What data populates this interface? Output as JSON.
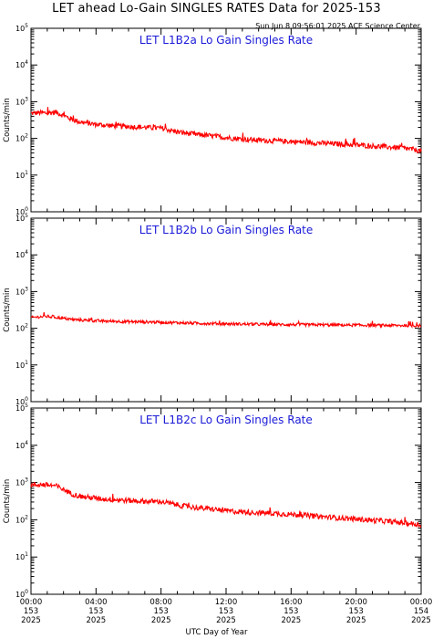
{
  "page": {
    "title": "LET ahead Lo-Gain SINGLES RATES Data for 2025-153",
    "timestamp": "Sun Jun  8 09:56:01 2025 ACE Science Center",
    "xlabel": "UTC Day of Year"
  },
  "colors": {
    "series": "#ff0000",
    "panel_title": "#1a1ad8",
    "axes": "#000000"
  },
  "chart_data": [
    {
      "type": "line",
      "title": "LET L1B2a Lo Gain Singles Rate",
      "ylabel": "Counts/min",
      "yscale": "log",
      "ylim": [
        1,
        100000
      ],
      "xlim": [
        0,
        24
      ],
      "x_tick_labels": [
        [
          "00:00",
          "153",
          "2025"
        ],
        [
          "04:00",
          "153",
          "2025"
        ],
        [
          "08:00",
          "153",
          "2025"
        ],
        [
          "12:00",
          "153",
          "2025"
        ],
        [
          "16:00",
          "153",
          "2025"
        ],
        [
          "20:00",
          "153",
          "2025"
        ],
        [
          "00:00",
          "154",
          "2025"
        ]
      ],
      "series": [
        {
          "x": [
            0,
            0.5,
            1,
            1.5,
            2,
            2.5,
            3,
            3.5,
            4,
            4.5,
            5,
            5.5,
            6,
            6.5,
            7,
            7.5,
            8,
            8.5,
            9,
            9.5,
            10,
            10.5,
            11,
            11.5,
            12,
            12.5,
            13,
            13.5,
            14,
            14.5,
            15,
            15.5,
            16,
            16.5,
            17,
            17.5,
            18,
            18.5,
            19,
            19.5,
            20,
            20.5,
            21,
            21.5,
            22,
            22.5,
            23,
            23.5,
            24
          ],
          "values": [
            480,
            500,
            490,
            520,
            420,
            330,
            280,
            260,
            240,
            230,
            220,
            215,
            210,
            205,
            200,
            195,
            190,
            170,
            150,
            140,
            130,
            125,
            118,
            112,
            105,
            100,
            96,
            92,
            90,
            88,
            86,
            84,
            82,
            80,
            78,
            76,
            74,
            72,
            70,
            68,
            66,
            64,
            62,
            60,
            58,
            56,
            54,
            50,
            45
          ]
        }
      ]
    },
    {
      "type": "line",
      "title": "LET L1B2b Lo Gain Singles Rate",
      "ylabel": "Counts/min",
      "yscale": "log",
      "ylim": [
        1,
        100000
      ],
      "xlim": [
        0,
        24
      ],
      "x_tick_labels": [
        [
          "00:00",
          "153",
          "2025"
        ],
        [
          "04:00",
          "153",
          "2025"
        ],
        [
          "08:00",
          "153",
          "2025"
        ],
        [
          "12:00",
          "153",
          "2025"
        ],
        [
          "16:00",
          "153",
          "2025"
        ],
        [
          "20:00",
          "153",
          "2025"
        ],
        [
          "00:00",
          "154",
          "2025"
        ]
      ],
      "series": [
        {
          "x": [
            0,
            0.5,
            1,
            1.5,
            2,
            2.5,
            3,
            3.5,
            4,
            4.5,
            5,
            5.5,
            6,
            6.5,
            7,
            7.5,
            8,
            8.5,
            9,
            9.5,
            10,
            10.5,
            11,
            11.5,
            12,
            12.5,
            13,
            13.5,
            14,
            14.5,
            15,
            15.5,
            16,
            16.5,
            17,
            17.5,
            18,
            18.5,
            19,
            19.5,
            20,
            20.5,
            21,
            21.5,
            22,
            22.5,
            23,
            23.5,
            24
          ],
          "values": [
            195,
            205,
            210,
            200,
            185,
            175,
            168,
            163,
            160,
            157,
            155,
            153,
            151,
            150,
            149,
            148,
            146,
            144,
            142,
            140,
            138,
            136,
            134,
            133,
            132,
            131,
            130,
            129,
            128,
            127,
            127,
            126,
            126,
            125,
            125,
            124,
            124,
            123,
            123,
            122,
            122,
            121,
            121,
            120,
            120,
            119,
            119,
            118,
            118
          ]
        }
      ]
    },
    {
      "type": "line",
      "title": "LET L1B2c Lo Gain Singles Rate",
      "ylabel": "Counts/min",
      "yscale": "log",
      "ylim": [
        1,
        100000
      ],
      "xlim": [
        0,
        24
      ],
      "x_tick_labels": [
        [
          "00:00",
          "153",
          "2025"
        ],
        [
          "04:00",
          "153",
          "2025"
        ],
        [
          "08:00",
          "153",
          "2025"
        ],
        [
          "12:00",
          "153",
          "2025"
        ],
        [
          "16:00",
          "153",
          "2025"
        ],
        [
          "20:00",
          "153",
          "2025"
        ],
        [
          "00:00",
          "154",
          "2025"
        ]
      ],
      "series": [
        {
          "x": [
            0,
            0.5,
            1,
            1.5,
            2,
            2.5,
            3,
            3.5,
            4,
            4.5,
            5,
            5.5,
            6,
            6.5,
            7,
            7.5,
            8,
            8.5,
            9,
            9.5,
            10,
            10.5,
            11,
            11.5,
            12,
            12.5,
            13,
            13.5,
            14,
            14.5,
            15,
            15.5,
            16,
            16.5,
            17,
            17.5,
            18,
            18.5,
            19,
            19.5,
            20,
            20.5,
            21,
            21.5,
            22,
            22.5,
            23,
            23.5,
            24
          ],
          "values": [
            850,
            880,
            860,
            820,
            650,
            500,
            430,
            400,
            380,
            360,
            350,
            340,
            330,
            320,
            315,
            310,
            305,
            280,
            250,
            230,
            215,
            205,
            195,
            185,
            175,
            168,
            162,
            158,
            155,
            152,
            148,
            144,
            140,
            135,
            130,
            125,
            120,
            116,
            112,
            108,
            104,
            100,
            97,
            94,
            90,
            86,
            82,
            78,
            72
          ]
        }
      ]
    }
  ]
}
